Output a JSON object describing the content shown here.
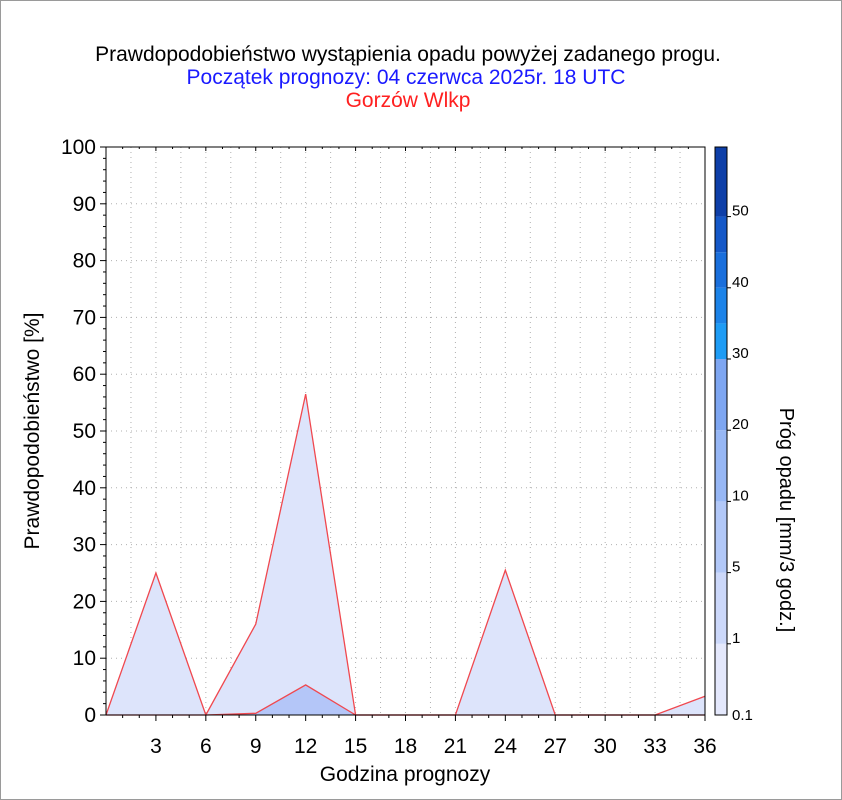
{
  "chart_data": {
    "type": "area",
    "title": "Prawdopodobieństwo wystąpienia opadu powyżej zadanego progu.",
    "subtitle": "Początek prognozy: 04 czerwca 2025r. 18 UTC",
    "location": "Gorzów Wlkp",
    "xlabel": "Godzina prognozy",
    "ylabel": "Prawdopodobieństwo [%]",
    "colorbar_label": "Próg opadu [mm/3 godz.]",
    "xlim": [
      0,
      36
    ],
    "ylim": [
      0,
      100
    ],
    "x_ticks": [
      "3",
      "6",
      "9",
      "12",
      "15",
      "18",
      "21",
      "24",
      "27",
      "30",
      "33",
      "36"
    ],
    "y_ticks": [
      "0",
      "10",
      "20",
      "30",
      "40",
      "50",
      "60",
      "70",
      "80",
      "90",
      "100"
    ],
    "grid": true,
    "x": [
      0,
      3,
      6,
      9,
      12,
      15,
      18,
      21,
      24,
      27,
      30,
      33,
      36
    ],
    "series": [
      {
        "name": "0.1",
        "color": "#dde4fb",
        "values": [
          0,
          25,
          0,
          16,
          56.5,
          0,
          0,
          0,
          25.5,
          0,
          0,
          0,
          3.3
        ]
      },
      {
        "name": "1",
        "color": "#b4c6f8",
        "values": [
          0,
          0,
          0,
          0.3,
          5.3,
          0,
          0,
          0,
          0,
          0,
          0,
          0,
          0
        ]
      }
    ],
    "colorbar": {
      "labels": [
        "0.1",
        "1",
        "5",
        "10",
        "20",
        "30",
        "40",
        "50"
      ],
      "colors": [
        "#e4e8fc",
        "#ccd8fa",
        "#b2c8f8",
        "#97b7f5",
        "#7ea6f1",
        "#1e9cf5",
        "#1c83e8",
        "#1a6fdc",
        "#1558c8",
        "#0e3fa8"
      ]
    }
  }
}
